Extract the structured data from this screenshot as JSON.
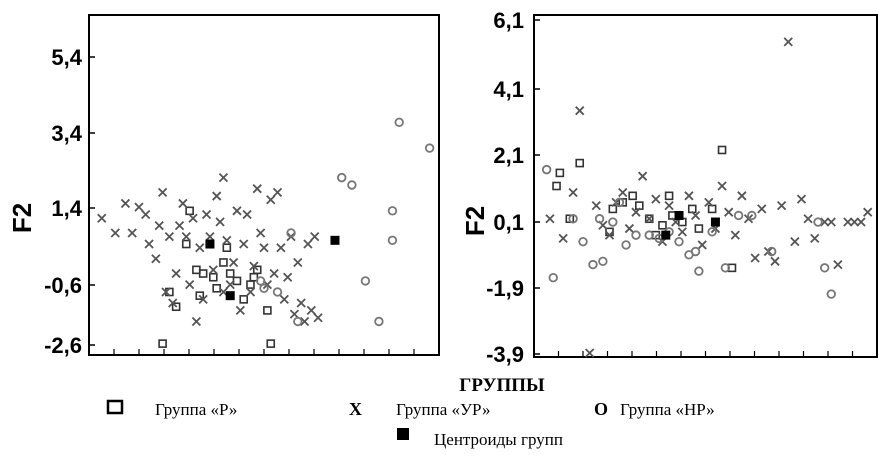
{
  "chart_data": [
    {
      "type": "scatter",
      "ylabel": "F2",
      "yticks": [
        "5,4",
        "3,4",
        "1,4",
        "-0,6",
        "-2,6"
      ],
      "ylim": [
        -2.6,
        6.4
      ],
      "xlim": [
        0,
        100
      ],
      "series": [
        {
          "key": "P",
          "marker": "square-open",
          "color": "#333333",
          "points": [
            [
              20,
              -2.4
            ],
            [
              22,
              -1.0
            ],
            [
              24,
              -1.4
            ],
            [
              27,
              0.3
            ],
            [
              28,
              1.2
            ],
            [
              30,
              -0.4
            ],
            [
              31,
              -1.1
            ],
            [
              32,
              -0.5
            ],
            [
              34,
              0.3
            ],
            [
              35,
              -0.6
            ],
            [
              36,
              -0.9
            ],
            [
              38,
              -0.2
            ],
            [
              39,
              0.2
            ],
            [
              40,
              -0.5
            ],
            [
              42,
              -0.7
            ],
            [
              44,
              -1.2
            ],
            [
              46,
              -0.8
            ],
            [
              47,
              -0.6
            ],
            [
              48,
              -0.4
            ],
            [
              51,
              -1.5
            ],
            [
              52,
              -2.4
            ]
          ]
        },
        {
          "key": "UR",
          "marker": "x",
          "color": "#555555",
          "points": [
            [
              2,
              1.0
            ],
            [
              6,
              0.6
            ],
            [
              9,
              1.4
            ],
            [
              11,
              0.6
            ],
            [
              13,
              1.3
            ],
            [
              15,
              1.1
            ],
            [
              16,
              0.3
            ],
            [
              18,
              -0.1
            ],
            [
              19,
              0.8
            ],
            [
              20,
              1.7
            ],
            [
              21,
              -1.0
            ],
            [
              22,
              0.5
            ],
            [
              23,
              -1.3
            ],
            [
              24,
              -0.5
            ],
            [
              25,
              0.8
            ],
            [
              26,
              1.4
            ],
            [
              27,
              0.5
            ],
            [
              28,
              -0.8
            ],
            [
              29,
              1.0
            ],
            [
              30,
              -1.8
            ],
            [
              31,
              0.2
            ],
            [
              32,
              -1.2
            ],
            [
              33,
              1.1
            ],
            [
              34,
              0.5
            ],
            [
              35,
              -0.4
            ],
            [
              36,
              1.6
            ],
            [
              37,
              0.9
            ],
            [
              38,
              2.1
            ],
            [
              38,
              -1.0
            ],
            [
              39,
              0.4
            ],
            [
              40,
              -0.8
            ],
            [
              41,
              -0.2
            ],
            [
              42,
              1.2
            ],
            [
              43,
              -1.5
            ],
            [
              44,
              0.3
            ],
            [
              45,
              1.1
            ],
            [
              46,
              -1.0
            ],
            [
              47,
              -0.3
            ],
            [
              48,
              1.8
            ],
            [
              49,
              0.6
            ],
            [
              50,
              0.2
            ],
            [
              51,
              -0.8
            ],
            [
              52,
              1.5
            ],
            [
              53,
              -0.5
            ],
            [
              54,
              1.7
            ],
            [
              55,
              0.2
            ],
            [
              56,
              -1.2
            ],
            [
              57,
              -0.6
            ],
            [
              58,
              0.5
            ],
            [
              59,
              -1.6
            ],
            [
              60,
              -0.2
            ],
            [
              61,
              -1.3
            ],
            [
              62,
              -1.8
            ],
            [
              63,
              0.3
            ],
            [
              64,
              -1.5
            ],
            [
              65,
              0.5
            ],
            [
              66,
              -1.7
            ]
          ]
        },
        {
          "key": "NR",
          "marker": "circle-open",
          "color": "#777777",
          "points": [
            [
              49,
              -0.7
            ],
            [
              50,
              -0.9
            ],
            [
              54,
              -1.0
            ],
            [
              58,
              0.6
            ],
            [
              60,
              -1.8
            ],
            [
              73,
              2.1
            ],
            [
              76,
              1.9
            ],
            [
              80,
              -0.7
            ],
            [
              84,
              -1.8
            ],
            [
              88,
              0.4
            ],
            [
              88,
              1.2
            ],
            [
              90,
              3.6
            ],
            [
              99,
              2.9
            ]
          ]
        },
        {
          "key": "centroids",
          "marker": "square-filled",
          "color": "#000000",
          "points": [
            [
              34,
              0.3
            ],
            [
              40,
              -1.1
            ],
            [
              71,
              0.4
            ]
          ]
        }
      ]
    },
    {
      "type": "scatter",
      "ylabel": "F2",
      "yticks": [
        "6,1",
        "4,1",
        "2,1",
        "0,1",
        "-1,9",
        "-3,9"
      ],
      "ylim": [
        -3.9,
        6.3
      ],
      "xlim": [
        0,
        100
      ],
      "series": [
        {
          "key": "P",
          "marker": "square-open",
          "color": "#333333",
          "points": [
            [
              5,
              1.2
            ],
            [
              6,
              1.6
            ],
            [
              9,
              0.2
            ],
            [
              12,
              1.9
            ],
            [
              21,
              -0.2
            ],
            [
              22,
              0.5
            ],
            [
              25,
              0.7
            ],
            [
              28,
              0.9
            ],
            [
              30,
              0.6
            ],
            [
              33,
              0.2
            ],
            [
              35,
              -0.3
            ],
            [
              37,
              0.0
            ],
            [
              39,
              0.9
            ],
            [
              40,
              0.3
            ],
            [
              43,
              0.1
            ],
            [
              46,
              0.5
            ],
            [
              48,
              -0.1
            ],
            [
              52,
              0.5
            ],
            [
              55,
              2.3
            ],
            [
              58,
              -1.3
            ]
          ]
        },
        {
          "key": "UR",
          "marker": "x",
          "color": "#555555",
          "points": [
            [
              3,
              0.2
            ],
            [
              7,
              -0.4
            ],
            [
              10,
              1.0
            ],
            [
              12,
              3.5
            ],
            [
              15,
              -3.9
            ],
            [
              17,
              0.6
            ],
            [
              19,
              0.0
            ],
            [
              21,
              -0.3
            ],
            [
              23,
              0.7
            ],
            [
              25,
              1.0
            ],
            [
              27,
              -0.1
            ],
            [
              29,
              0.4
            ],
            [
              31,
              1.5
            ],
            [
              33,
              0.2
            ],
            [
              35,
              0.8
            ],
            [
              37,
              -0.5
            ],
            [
              39,
              0.6
            ],
            [
              41,
              0.1
            ],
            [
              43,
              -0.2
            ],
            [
              45,
              0.9
            ],
            [
              47,
              0.3
            ],
            [
              49,
              -0.6
            ],
            [
              51,
              0.7
            ],
            [
              53,
              -0.1
            ],
            [
              55,
              1.2
            ],
            [
              57,
              0.4
            ],
            [
              59,
              -0.3
            ],
            [
              61,
              0.9
            ],
            [
              63,
              0.2
            ],
            [
              65,
              -1.0
            ],
            [
              67,
              0.5
            ],
            [
              69,
              -0.8
            ],
            [
              71,
              -1.1
            ],
            [
              73,
              0.6
            ],
            [
              75,
              5.6
            ],
            [
              77,
              -0.5
            ],
            [
              79,
              0.8
            ],
            [
              81,
              0.2
            ],
            [
              83,
              -0.4
            ],
            [
              86,
              0.1
            ],
            [
              88,
              0.1
            ],
            [
              90,
              -1.2
            ],
            [
              93,
              0.1
            ],
            [
              95,
              0.1
            ],
            [
              97,
              0.1
            ],
            [
              99,
              0.4
            ]
          ]
        },
        {
          "key": "NR",
          "marker": "circle-open",
          "color": "#777777",
          "points": [
            [
              2,
              1.7
            ],
            [
              4,
              -1.6
            ],
            [
              10,
              0.2
            ],
            [
              13,
              -0.5
            ],
            [
              16,
              -1.2
            ],
            [
              18,
              0.2
            ],
            [
              19,
              -1.1
            ],
            [
              22,
              0.1
            ],
            [
              24,
              0.7
            ],
            [
              26,
              -0.6
            ],
            [
              29,
              -0.3
            ],
            [
              33,
              -0.3
            ],
            [
              36,
              -0.4
            ],
            [
              39,
              -0.2
            ],
            [
              42,
              -0.5
            ],
            [
              45,
              -0.9
            ],
            [
              47,
              -0.8
            ],
            [
              48,
              -1.4
            ],
            [
              52,
              -0.2
            ],
            [
              56,
              -1.3
            ],
            [
              60,
              0.3
            ],
            [
              64,
              0.3
            ],
            [
              70,
              -0.8
            ],
            [
              84,
              0.1
            ],
            [
              86,
              -1.3
            ],
            [
              88,
              -2.1
            ]
          ]
        },
        {
          "key": "centroids",
          "marker": "square-filled",
          "color": "#000000",
          "points": [
            [
              38,
              -0.3
            ],
            [
              42,
              0.3
            ],
            [
              53,
              0.1
            ]
          ]
        }
      ]
    }
  ],
  "legend": {
    "title": "ГРУППЫ",
    "items": [
      {
        "key": "P",
        "symbol_text": "",
        "label": "Группа «Р»"
      },
      {
        "key": "UR",
        "symbol_text": "Х",
        "label": "Группа «УР»"
      },
      {
        "key": "NR",
        "symbol_text": "О",
        "label": "Группа «НР»"
      },
      {
        "key": "centroids",
        "symbol_text": "",
        "label": "Центроиды групп"
      }
    ]
  }
}
